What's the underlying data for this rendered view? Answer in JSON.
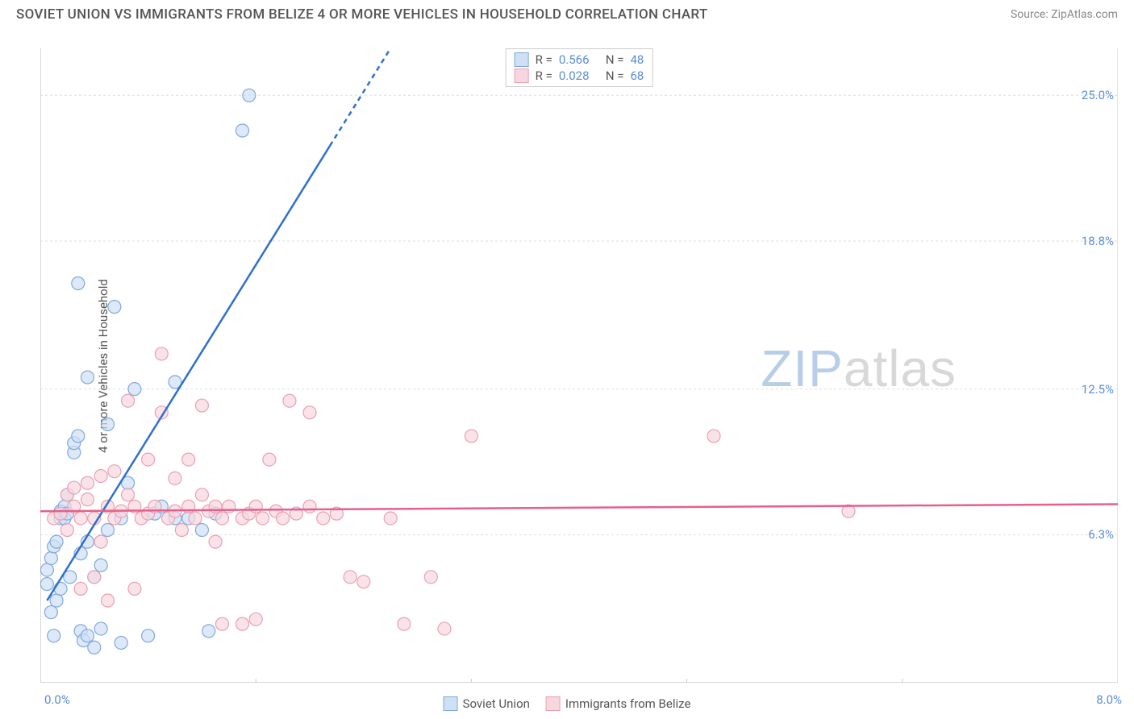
{
  "header": {
    "title": "SOVIET UNION VS IMMIGRANTS FROM BELIZE 4 OR MORE VEHICLES IN HOUSEHOLD CORRELATION CHART",
    "source": "Source: ZipAtlas.com"
  },
  "chart": {
    "type": "scatter",
    "ylabel": "4 or more Vehicles in Household",
    "xlim": [
      0.0,
      8.0
    ],
    "ylim": [
      0.0,
      27.0
    ],
    "xtick_left": "0.0%",
    "xtick_right": "8.0%",
    "yticks": [
      {
        "value": 6.3,
        "label": "6.3%"
      },
      {
        "value": 12.5,
        "label": "12.5%"
      },
      {
        "value": 18.8,
        "label": "18.8%"
      },
      {
        "value": 25.0,
        "label": "25.0%"
      }
    ],
    "grid_color": "#dddddd",
    "axis_color": "#cccccc",
    "background_color": "#ffffff",
    "series": [
      {
        "name": "Soviet Union",
        "color_fill": "#cfe0f5",
        "color_stroke": "#7fa8db",
        "line_color": "#2f6fd0",
        "R": "0.566",
        "N": "48",
        "trend": {
          "x1": 0.05,
          "y1": 3.5,
          "x2": 2.6,
          "y2": 27.0,
          "dash_from_x": 2.15
        },
        "points": [
          [
            0.05,
            4.2
          ],
          [
            0.05,
            4.8
          ],
          [
            0.08,
            5.3
          ],
          [
            0.08,
            3.0
          ],
          [
            0.1,
            2.0
          ],
          [
            0.1,
            5.8
          ],
          [
            0.12,
            6.0
          ],
          [
            0.12,
            3.5
          ],
          [
            0.15,
            7.0
          ],
          [
            0.15,
            7.3
          ],
          [
            0.18,
            7.0
          ],
          [
            0.18,
            7.5
          ],
          [
            0.2,
            7.2
          ],
          [
            0.2,
            8.0
          ],
          [
            0.25,
            9.8
          ],
          [
            0.25,
            10.2
          ],
          [
            0.28,
            10.5
          ],
          [
            0.28,
            17.0
          ],
          [
            0.3,
            2.2
          ],
          [
            0.32,
            1.8
          ],
          [
            0.35,
            2.0
          ],
          [
            0.35,
            13.0
          ],
          [
            0.4,
            1.5
          ],
          [
            0.45,
            2.3
          ],
          [
            0.5,
            6.5
          ],
          [
            0.5,
            11.0
          ],
          [
            0.55,
            16.0
          ],
          [
            0.6,
            1.7
          ],
          [
            0.6,
            7.0
          ],
          [
            0.65,
            8.5
          ],
          [
            0.7,
            12.5
          ],
          [
            0.8,
            2.0
          ],
          [
            0.85,
            7.2
          ],
          [
            0.9,
            7.5
          ],
          [
            1.0,
            7.0
          ],
          [
            1.0,
            12.8
          ],
          [
            1.1,
            7.0
          ],
          [
            1.2,
            6.5
          ],
          [
            1.25,
            2.2
          ],
          [
            1.3,
            7.2
          ],
          [
            1.5,
            23.5
          ],
          [
            1.55,
            25.0
          ],
          [
            0.4,
            4.5
          ],
          [
            0.45,
            5.0
          ],
          [
            0.15,
            4.0
          ],
          [
            0.22,
            4.5
          ],
          [
            0.3,
            5.5
          ],
          [
            0.35,
            6.0
          ]
        ]
      },
      {
        "name": "Immigrants from Belize",
        "color_fill": "#f7d7df",
        "color_stroke": "#e8a0b3",
        "line_color": "#e75f8b",
        "R": "0.028",
        "N": "68",
        "trend": {
          "x1": 0.0,
          "y1": 7.3,
          "x2": 8.0,
          "y2": 7.6
        },
        "points": [
          [
            0.1,
            7.0
          ],
          [
            0.15,
            7.2
          ],
          [
            0.2,
            8.0
          ],
          [
            0.2,
            6.5
          ],
          [
            0.25,
            7.5
          ],
          [
            0.25,
            8.3
          ],
          [
            0.3,
            4.0
          ],
          [
            0.3,
            7.0
          ],
          [
            0.35,
            7.8
          ],
          [
            0.35,
            8.5
          ],
          [
            0.4,
            4.5
          ],
          [
            0.4,
            7.0
          ],
          [
            0.45,
            6.0
          ],
          [
            0.45,
            8.8
          ],
          [
            0.5,
            3.5
          ],
          [
            0.5,
            7.5
          ],
          [
            0.55,
            7.0
          ],
          [
            0.55,
            9.0
          ],
          [
            0.6,
            7.3
          ],
          [
            0.65,
            8.0
          ],
          [
            0.65,
            12.0
          ],
          [
            0.7,
            4.0
          ],
          [
            0.7,
            7.5
          ],
          [
            0.75,
            7.0
          ],
          [
            0.8,
            7.2
          ],
          [
            0.8,
            9.5
          ],
          [
            0.85,
            7.5
          ],
          [
            0.9,
            11.5
          ],
          [
            0.9,
            14.0
          ],
          [
            0.95,
            7.0
          ],
          [
            1.0,
            7.3
          ],
          [
            1.0,
            8.7
          ],
          [
            1.05,
            6.5
          ],
          [
            1.1,
            7.5
          ],
          [
            1.1,
            9.5
          ],
          [
            1.15,
            7.0
          ],
          [
            1.2,
            8.0
          ],
          [
            1.2,
            11.8
          ],
          [
            1.25,
            7.3
          ],
          [
            1.3,
            6.0
          ],
          [
            1.3,
            7.5
          ],
          [
            1.35,
            2.5
          ],
          [
            1.35,
            7.0
          ],
          [
            1.4,
            7.5
          ],
          [
            1.5,
            2.5
          ],
          [
            1.5,
            7.0
          ],
          [
            1.55,
            7.2
          ],
          [
            1.6,
            2.7
          ],
          [
            1.6,
            7.5
          ],
          [
            1.65,
            7.0
          ],
          [
            1.7,
            9.5
          ],
          [
            1.75,
            7.3
          ],
          [
            1.8,
            7.0
          ],
          [
            1.85,
            12.0
          ],
          [
            1.9,
            7.2
          ],
          [
            2.0,
            7.5
          ],
          [
            2.0,
            11.5
          ],
          [
            2.1,
            7.0
          ],
          [
            2.3,
            4.5
          ],
          [
            2.4,
            4.3
          ],
          [
            2.6,
            7.0
          ],
          [
            2.7,
            2.5
          ],
          [
            2.9,
            4.5
          ],
          [
            3.2,
            10.5
          ],
          [
            3.0,
            2.3
          ],
          [
            5.0,
            10.5
          ],
          [
            6.0,
            7.3
          ],
          [
            2.2,
            7.2
          ]
        ]
      }
    ],
    "marker_radius": 8,
    "marker_opacity": 0.7,
    "line_width": 2.5,
    "watermark": {
      "zip": "ZIP",
      "atlas": "atlas"
    }
  },
  "legend_bottom": {
    "items": [
      {
        "label": "Soviet Union",
        "fill": "#cfe0f5",
        "stroke": "#7fa8db"
      },
      {
        "label": "Immigrants from Belize",
        "fill": "#f7d7df",
        "stroke": "#e8a0b3"
      }
    ]
  }
}
